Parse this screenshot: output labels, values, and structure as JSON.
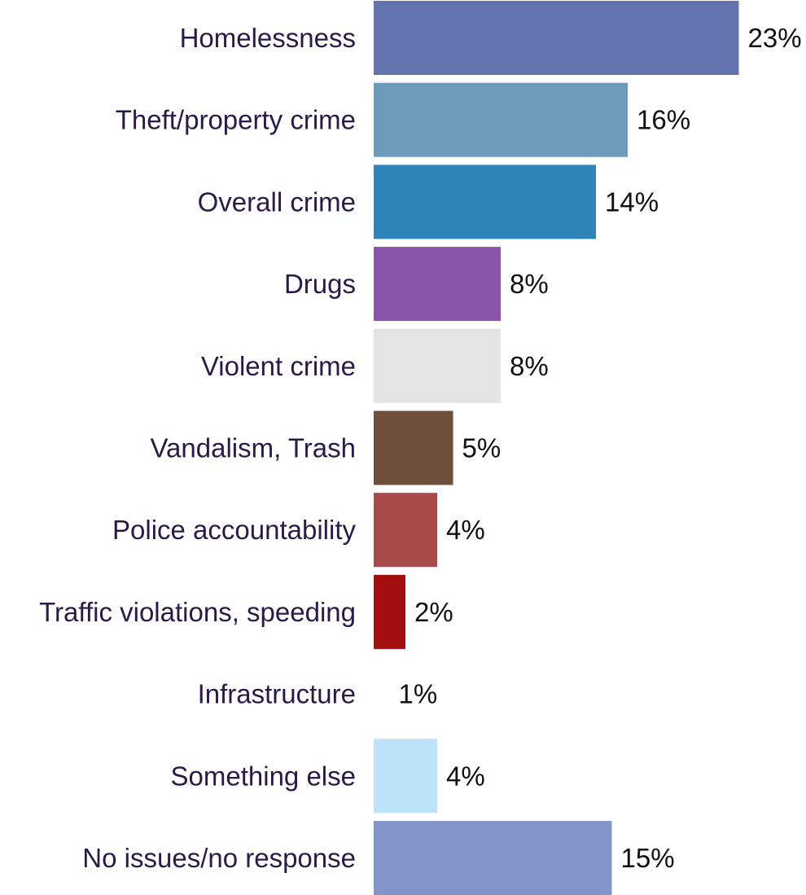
{
  "chart_data": {
    "type": "bar",
    "orientation": "horizontal",
    "categories": [
      "Homelessness",
      "Theft/property crime",
      "Overall crime",
      "Drugs",
      "Violent crime",
      "Vandalism, Trash",
      "Police accountability",
      "Traffic violations, speeding",
      "Infrastructure",
      "Something else",
      "No issues/no response"
    ],
    "values": [
      23,
      16,
      14,
      8,
      8,
      5,
      4,
      2,
      1,
      4,
      15
    ],
    "value_labels": [
      "23%",
      "16%",
      "14%",
      "8%",
      "8%",
      "5%",
      "4%",
      "2%",
      "1%",
      "4%",
      "15%"
    ],
    "colors": [
      "#6273ae",
      "#6b9aba",
      "#2e84b8",
      "#8b54ab",
      "#e4e4e4",
      "#6e4f3b",
      "#a84a4a",
      "#a30f0e",
      "#ffffff",
      "#bde3fb",
      "#8394c8"
    ],
    "xlim": [
      0,
      23
    ],
    "title": "",
    "xlabel": "",
    "ylabel": "",
    "grid": false,
    "legend": "none"
  }
}
